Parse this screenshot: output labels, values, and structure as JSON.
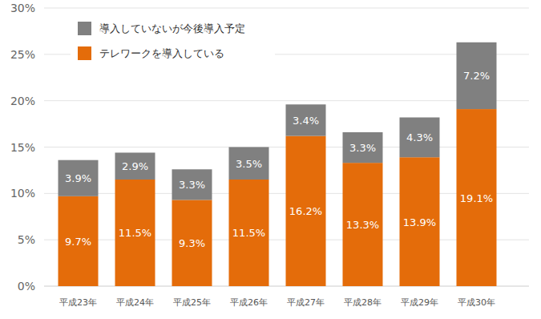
{
  "chart_data": {
    "type": "bar",
    "stacked": true,
    "data_labels": true,
    "grid": true,
    "legend": "upper left",
    "categories": [
      "平成23年",
      "平成24年",
      "平成25年",
      "平成26年",
      "平成27年",
      "平成28年",
      "平成29年",
      "平成30年"
    ],
    "series": [
      {
        "name": "テレワークを導入している",
        "color": "#e46c0a",
        "values": [
          9.7,
          11.5,
          9.3,
          11.5,
          16.2,
          13.3,
          13.9,
          19.1
        ],
        "value_labels": [
          "9.7%",
          "11.5%",
          "9.3%",
          "11.5%",
          "16.2%",
          "13.3%",
          "13.9%",
          "19.1%"
        ]
      },
      {
        "name": "導入していないが今後導入予定",
        "color": "#808080",
        "values": [
          3.9,
          2.9,
          3.3,
          3.5,
          3.4,
          3.3,
          4.3,
          7.2
        ],
        "value_labels": [
          "3.9%",
          "2.9%",
          "3.3%",
          "3.5%",
          "3.4%",
          "3.3%",
          "4.3%",
          "7.2%"
        ]
      }
    ],
    "ylim": [
      0,
      30
    ],
    "yticks": [
      {
        "value": 0,
        "label": "0%"
      },
      {
        "value": 5,
        "label": "5%"
      },
      {
        "value": 10,
        "label": "10%"
      },
      {
        "value": 15,
        "label": "15%"
      },
      {
        "value": 20,
        "label": "20%"
      },
      {
        "value": 25,
        "label": "25%"
      },
      {
        "value": 30,
        "label": "30%"
      }
    ]
  }
}
